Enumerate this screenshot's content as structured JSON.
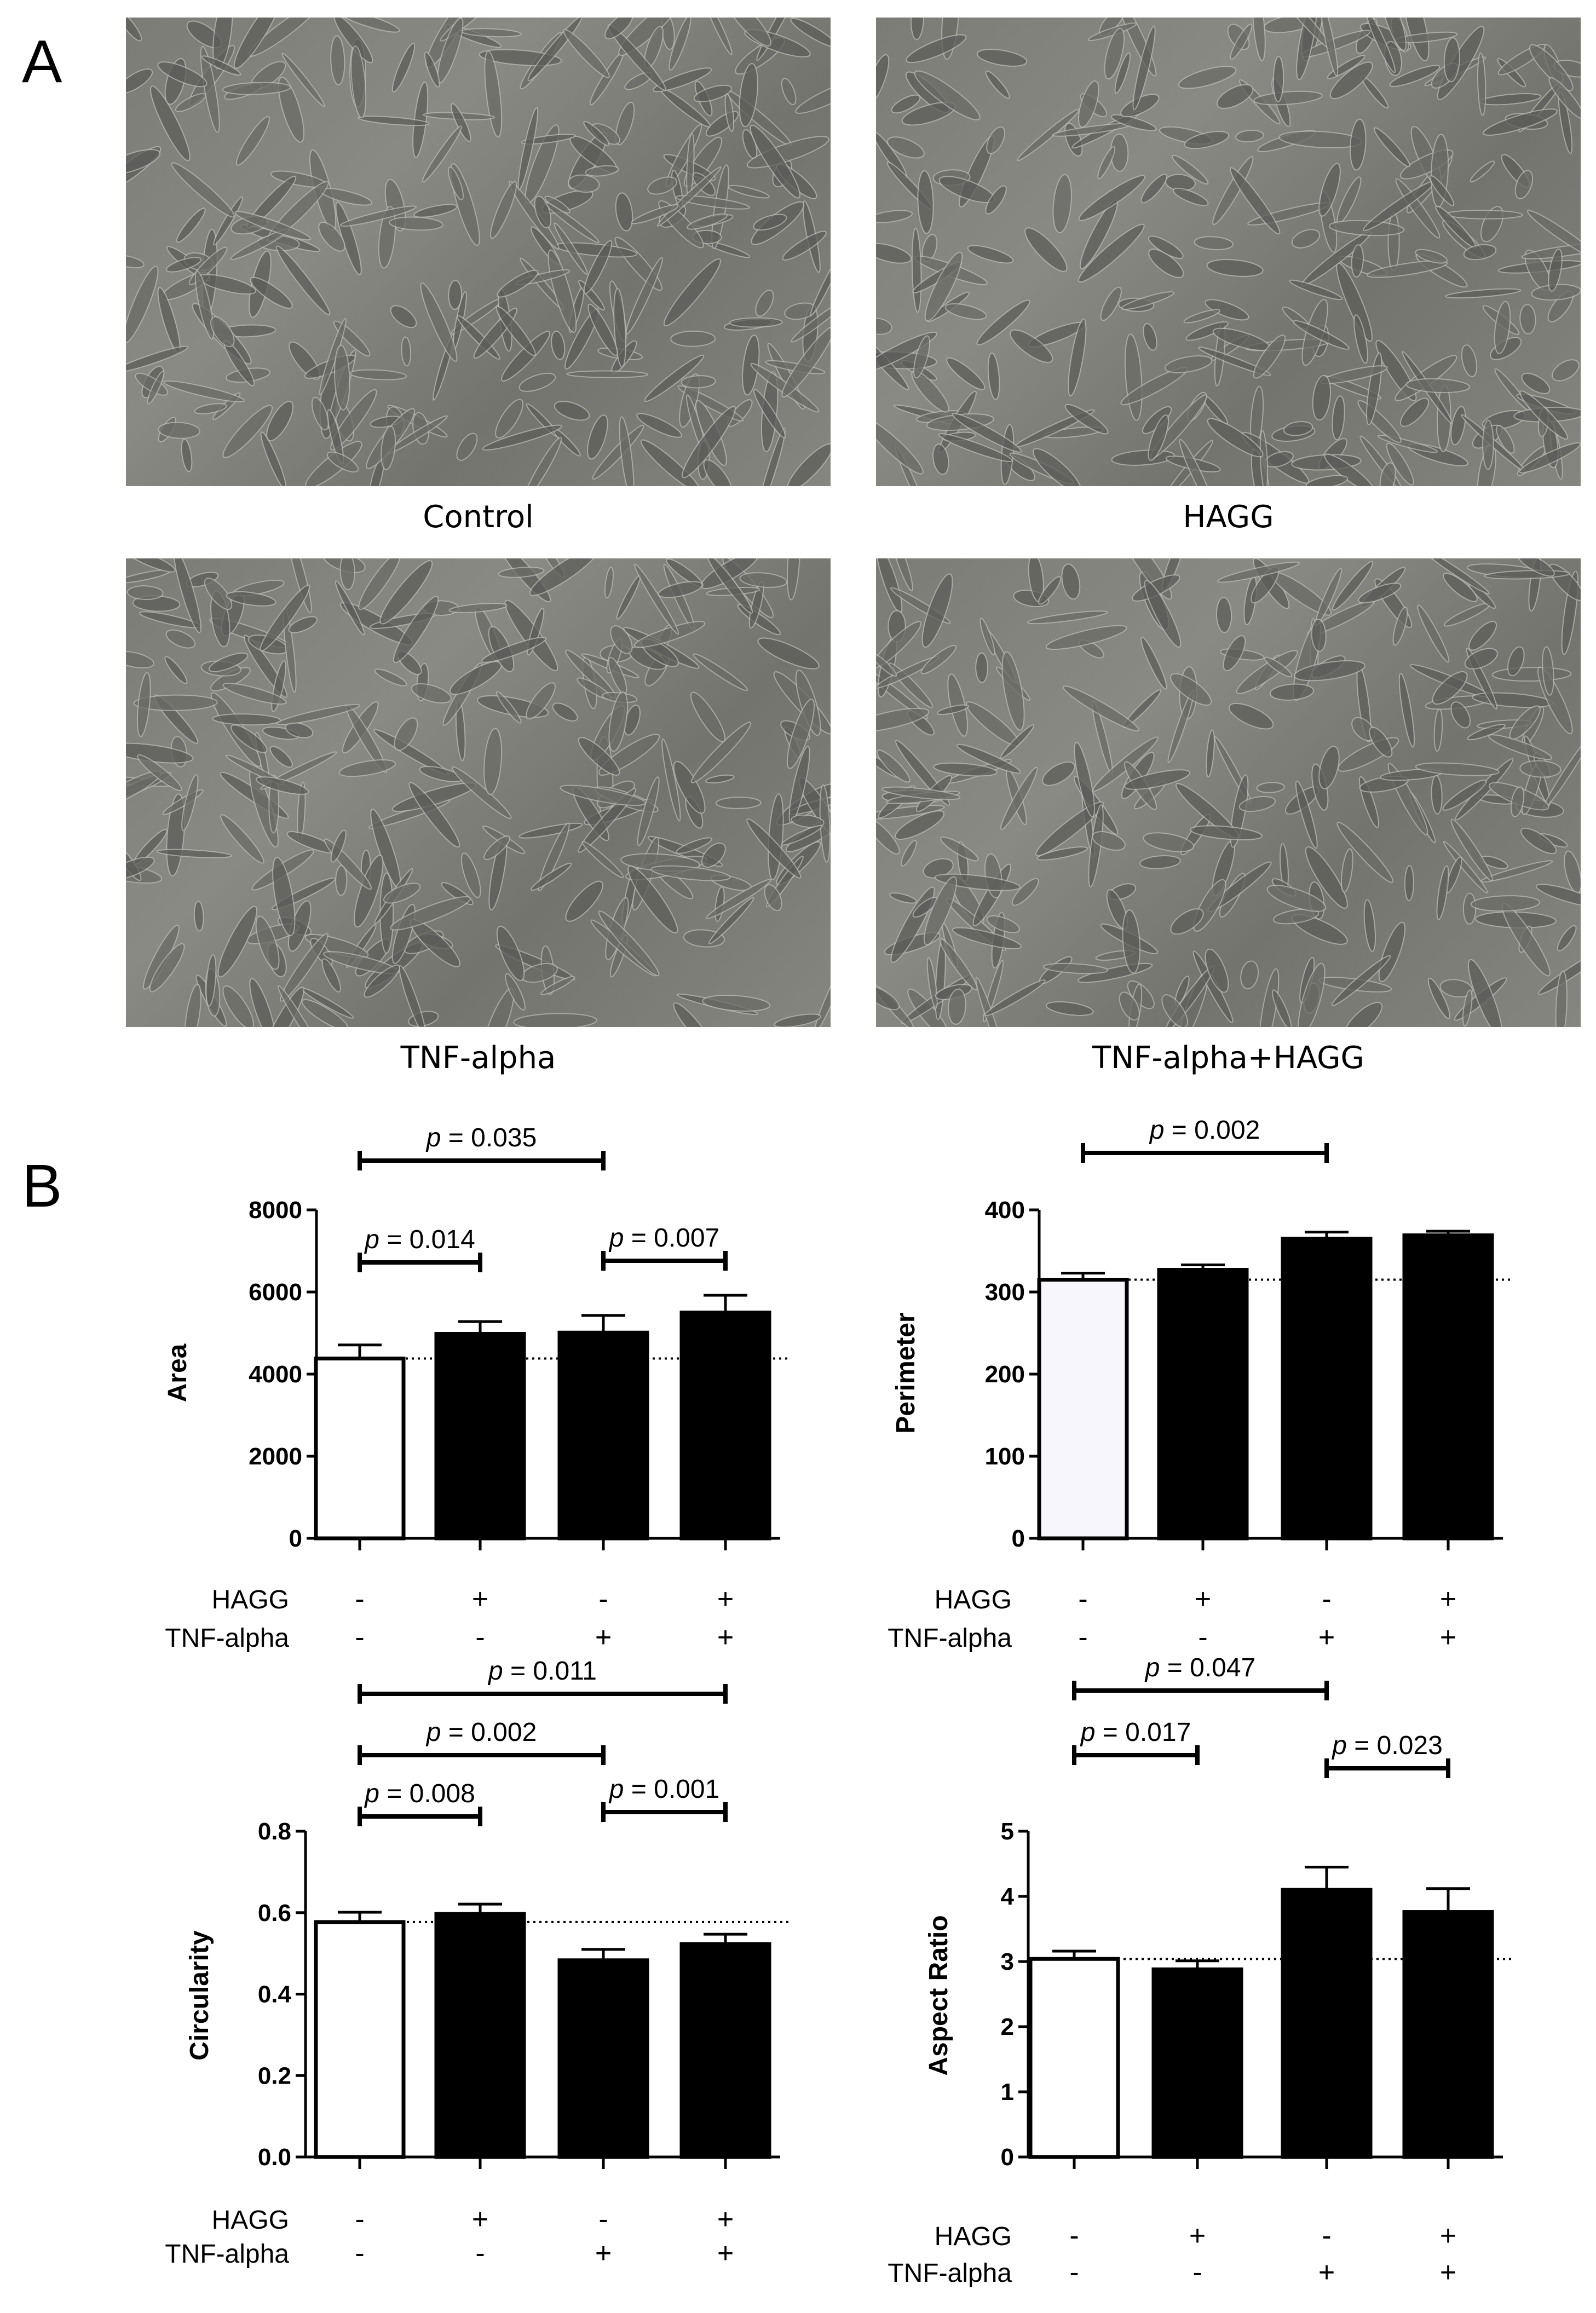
{
  "panel_a": {
    "letter": "A",
    "images": [
      {
        "caption": "Control"
      },
      {
        "caption": "HAGG"
      },
      {
        "caption": "TNF-alpha"
      },
      {
        "caption": "TNF-alpha+HAGG"
      }
    ]
  },
  "panel_b": {
    "letter": "B"
  },
  "chart_data": [
    {
      "type": "bar",
      "ylabel": "Area",
      "ylim": [
        0,
        8000
      ],
      "yticks": [
        0,
        2000,
        4000,
        6000,
        8000
      ],
      "values": [
        4380,
        4980,
        5010,
        5500
      ],
      "errors": [
        330,
        300,
        420,
        420
      ],
      "fills": [
        "#ffffff",
        "#000000",
        "#000000",
        "#000000"
      ],
      "control_reference_line": 4380,
      "factor_rows": [
        {
          "label": "HAGG",
          "signs": [
            "-",
            "+",
            "-",
            "+"
          ]
        },
        {
          "label": "TNF-alpha",
          "signs": [
            "-",
            "-",
            "+",
            "+"
          ]
        }
      ],
      "comparisons": [
        {
          "from": 1,
          "to": 3,
          "p_symbol": "p",
          "p_text": " = 0.035"
        },
        {
          "from": 1,
          "to": 2,
          "p_symbol": "p",
          "p_text": " = 0.014"
        },
        {
          "from": 3,
          "to": 4,
          "p_symbol": "p",
          "p_text": " = 0.007"
        }
      ]
    },
    {
      "type": "bar",
      "ylabel": "Perimeter",
      "ylim": [
        0,
        400
      ],
      "yticks": [
        0,
        100,
        200,
        300,
        400
      ],
      "values": [
        315,
        327,
        365,
        369
      ],
      "errors": [
        8,
        6,
        8,
        5
      ],
      "fills": [
        "#f7f6fc",
        "#000000",
        "#000000",
        "#000000"
      ],
      "control_reference_line": 315,
      "factor_rows": [
        {
          "label": "HAGG",
          "signs": [
            "-",
            "+",
            "-",
            "+"
          ]
        },
        {
          "label": "TNF-alpha",
          "signs": [
            "-",
            "-",
            "+",
            "+"
          ]
        }
      ],
      "comparisons": [
        {
          "from": 1,
          "to": 3,
          "p_symbol": "p",
          "p_text": " = 0.002"
        }
      ]
    },
    {
      "type": "bar",
      "ylabel": "Circularity",
      "ylim": [
        0,
        0.8
      ],
      "yticks": [
        "0.0",
        "0.2",
        "0.4",
        "0.6",
        "0.8"
      ],
      "values": [
        0.577,
        0.597,
        0.483,
        0.523
      ],
      "errors": [
        0.024,
        0.024,
        0.027,
        0.024
      ],
      "fills": [
        "#ffffff",
        "#000000",
        "#000000",
        "#000000"
      ],
      "control_reference_line": 0.577,
      "factor_rows": [
        {
          "label": "HAGG",
          "signs": [
            "-",
            "+",
            "-",
            "+"
          ]
        },
        {
          "label": "TNF-alpha",
          "signs": [
            "-",
            "-",
            "+",
            "+"
          ]
        }
      ],
      "comparisons": [
        {
          "from": 1,
          "to": 4,
          "p_symbol": "p",
          "p_text": " = 0.011"
        },
        {
          "from": 1,
          "to": 3,
          "p_symbol": "p",
          "p_text": " = 0.002"
        },
        {
          "from": 1,
          "to": 2,
          "p_symbol": "p",
          "p_text": " = 0.008"
        },
        {
          "from": 3,
          "to": 4,
          "p_symbol": "p",
          "p_text": " = 0.001"
        }
      ]
    },
    {
      "type": "bar",
      "ylabel": "Aspect Ratio",
      "ylim": [
        0,
        5
      ],
      "yticks": [
        0,
        1,
        2,
        3,
        4,
        5
      ],
      "values": [
        3.04,
        2.88,
        4.1,
        3.76
      ],
      "errors": [
        0.12,
        0.13,
        0.35,
        0.36
      ],
      "fills": [
        "#ffffff",
        "#000000",
        "#000000",
        "#000000"
      ],
      "control_reference_line": 3.04,
      "factor_rows": [
        {
          "label": "HAGG",
          "signs": [
            "-",
            "+",
            "-",
            "+"
          ]
        },
        {
          "label": "TNF-alpha",
          "signs": [
            "-",
            "-",
            "+",
            "+"
          ]
        }
      ],
      "comparisons": [
        {
          "from": 1,
          "to": 3,
          "p_symbol": "p",
          "p_text": " = 0.047"
        },
        {
          "from": 3,
          "to": 4,
          "p_symbol": "p",
          "p_text": " = 0.023"
        },
        {
          "from": 1,
          "to": 2,
          "p_symbol": "p",
          "p_text": " = 0.017"
        }
      ]
    }
  ]
}
